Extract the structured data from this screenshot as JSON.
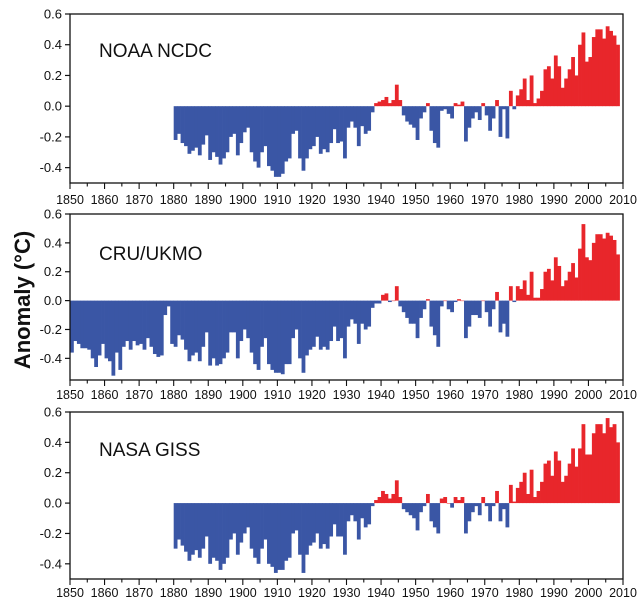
{
  "ylabel": "Anomaly (°C)",
  "colors": {
    "positive": "#e8262b",
    "negative": "#3a56a5",
    "frame": "#111111"
  },
  "chart_data": [
    {
      "type": "bar",
      "title": "NOAA NCDC",
      "xlim": [
        1850,
        2010
      ],
      "ylim": [
        -0.5,
        0.6
      ],
      "xticks": [
        1850,
        1860,
        1870,
        1880,
        1890,
        1900,
        1910,
        1920,
        1930,
        1940,
        1950,
        1960,
        1970,
        1980,
        1990,
        2000,
        2010
      ],
      "yticks": [
        {
          "value": 0.6,
          "label": "0.6"
        },
        {
          "value": 0.4,
          "label": "0.4"
        },
        {
          "value": 0.2,
          "label": "0.2"
        },
        {
          "value": 0.0,
          "label": "0.0"
        },
        {
          "value": -0.2,
          "label": "-0.2"
        },
        {
          "value": -0.4,
          "label": "-0.4"
        }
      ],
      "grid": false,
      "x": [
        1880,
        1881,
        1882,
        1883,
        1884,
        1885,
        1886,
        1887,
        1888,
        1889,
        1890,
        1891,
        1892,
        1893,
        1894,
        1895,
        1896,
        1897,
        1898,
        1899,
        1900,
        1901,
        1902,
        1903,
        1904,
        1905,
        1906,
        1907,
        1908,
        1909,
        1910,
        1911,
        1912,
        1913,
        1914,
        1915,
        1916,
        1917,
        1918,
        1919,
        1920,
        1921,
        1922,
        1923,
        1924,
        1925,
        1926,
        1927,
        1928,
        1929,
        1930,
        1931,
        1932,
        1933,
        1934,
        1935,
        1936,
        1937,
        1938,
        1939,
        1940,
        1941,
        1942,
        1943,
        1944,
        1945,
        1946,
        1947,
        1948,
        1949,
        1950,
        1951,
        1952,
        1953,
        1954,
        1955,
        1956,
        1957,
        1958,
        1959,
        1960,
        1961,
        1962,
        1963,
        1964,
        1965,
        1966,
        1967,
        1968,
        1969,
        1970,
        1971,
        1972,
        1973,
        1974,
        1975,
        1976,
        1977,
        1978,
        1979,
        1980,
        1981,
        1982,
        1983,
        1984,
        1985,
        1986,
        1987,
        1988,
        1989,
        1990,
        1991,
        1992,
        1993,
        1994,
        1995,
        1996,
        1997,
        1998,
        1999,
        2000,
        2001,
        2002,
        2003,
        2004,
        2005,
        2006,
        2007,
        2008
      ],
      "values": [
        -0.22,
        -0.18,
        -0.24,
        -0.26,
        -0.31,
        -0.29,
        -0.27,
        -0.32,
        -0.25,
        -0.19,
        -0.35,
        -0.3,
        -0.33,
        -0.38,
        -0.34,
        -0.3,
        -0.2,
        -0.18,
        -0.32,
        -0.24,
        -0.17,
        -0.14,
        -0.3,
        -0.36,
        -0.4,
        -0.3,
        -0.26,
        -0.39,
        -0.42,
        -0.46,
        -0.46,
        -0.44,
        -0.36,
        -0.34,
        -0.18,
        -0.16,
        -0.34,
        -0.42,
        -0.34,
        -0.28,
        -0.26,
        -0.2,
        -0.31,
        -0.28,
        -0.3,
        -0.24,
        -0.15,
        -0.24,
        -0.23,
        -0.34,
        -0.14,
        -0.1,
        -0.14,
        -0.26,
        -0.13,
        -0.18,
        -0.16,
        -0.04,
        0.02,
        0.03,
        0.04,
        0.06,
        0.02,
        0.04,
        0.14,
        0.04,
        -0.06,
        -0.1,
        -0.12,
        -0.14,
        -0.22,
        -0.08,
        -0.04,
        0.02,
        -0.16,
        -0.24,
        -0.27,
        -0.03,
        -0.02,
        -0.05,
        -0.08,
        0.02,
        0.01,
        0.03,
        -0.23,
        -0.14,
        -0.08,
        -0.04,
        -0.09,
        0.02,
        -0.06,
        -0.16,
        -0.08,
        0.04,
        -0.2,
        -0.02,
        -0.21,
        0.1,
        -0.02,
        0.07,
        0.11,
        0.18,
        0.04,
        0.2,
        0.02,
        0.05,
        0.1,
        0.24,
        0.26,
        0.18,
        0.33,
        0.26,
        0.12,
        0.18,
        0.24,
        0.32,
        0.2,
        0.4,
        0.48,
        0.29,
        0.32,
        0.45,
        0.5,
        0.5,
        0.44,
        0.52,
        0.49,
        0.46,
        0.4
      ]
    },
    {
      "type": "bar",
      "title": "CRU/UKMO",
      "xlim": [
        1850,
        2010
      ],
      "ylim": [
        -0.55,
        0.6
      ],
      "xticks": [
        1850,
        1860,
        1870,
        1880,
        1890,
        1900,
        1910,
        1920,
        1930,
        1940,
        1950,
        1960,
        1970,
        1980,
        1990,
        2000,
        2010
      ],
      "yticks": [
        {
          "value": 0.6,
          "label": "0.6"
        },
        {
          "value": 0.4,
          "label": "0.4"
        },
        {
          "value": 0.2,
          "label": "0.2"
        },
        {
          "value": 0.0,
          "label": "0.0"
        },
        {
          "value": -0.2,
          "label": "-0.2"
        },
        {
          "value": -0.4,
          "label": "-0.4"
        }
      ],
      "grid": false,
      "x": [
        1850,
        1851,
        1852,
        1853,
        1854,
        1855,
        1856,
        1857,
        1858,
        1859,
        1860,
        1861,
        1862,
        1863,
        1864,
        1865,
        1866,
        1867,
        1868,
        1869,
        1870,
        1871,
        1872,
        1873,
        1874,
        1875,
        1876,
        1877,
        1878,
        1879,
        1880,
        1881,
        1882,
        1883,
        1884,
        1885,
        1886,
        1887,
        1888,
        1889,
        1890,
        1891,
        1892,
        1893,
        1894,
        1895,
        1896,
        1897,
        1898,
        1899,
        1900,
        1901,
        1902,
        1903,
        1904,
        1905,
        1906,
        1907,
        1908,
        1909,
        1910,
        1911,
        1912,
        1913,
        1914,
        1915,
        1916,
        1917,
        1918,
        1919,
        1920,
        1921,
        1922,
        1923,
        1924,
        1925,
        1926,
        1927,
        1928,
        1929,
        1930,
        1931,
        1932,
        1933,
        1934,
        1935,
        1936,
        1937,
        1938,
        1939,
        1940,
        1941,
        1942,
        1943,
        1944,
        1945,
        1946,
        1947,
        1948,
        1949,
        1950,
        1951,
        1952,
        1953,
        1954,
        1955,
        1956,
        1957,
        1958,
        1959,
        1960,
        1961,
        1962,
        1963,
        1964,
        1965,
        1966,
        1967,
        1968,
        1969,
        1970,
        1971,
        1972,
        1973,
        1974,
        1975,
        1976,
        1977,
        1978,
        1979,
        1980,
        1981,
        1982,
        1983,
        1984,
        1985,
        1986,
        1987,
        1988,
        1989,
        1990,
        1991,
        1992,
        1993,
        1994,
        1995,
        1996,
        1997,
        1998,
        1999,
        2000,
        2001,
        2002,
        2003,
        2004,
        2005,
        2006,
        2007,
        2008
      ],
      "values": [
        -0.36,
        -0.28,
        -0.3,
        -0.33,
        -0.33,
        -0.34,
        -0.4,
        -0.46,
        -0.38,
        -0.3,
        -0.4,
        -0.42,
        -0.52,
        -0.36,
        -0.48,
        -0.32,
        -0.28,
        -0.34,
        -0.28,
        -0.31,
        -0.3,
        -0.34,
        -0.26,
        -0.32,
        -0.37,
        -0.39,
        -0.38,
        -0.1,
        -0.04,
        -0.3,
        -0.32,
        -0.24,
        -0.27,
        -0.34,
        -0.42,
        -0.38,
        -0.36,
        -0.42,
        -0.32,
        -0.22,
        -0.45,
        -0.4,
        -0.45,
        -0.44,
        -0.4,
        -0.36,
        -0.22,
        -0.22,
        -0.4,
        -0.28,
        -0.2,
        -0.26,
        -0.36,
        -0.44,
        -0.48,
        -0.32,
        -0.26,
        -0.44,
        -0.48,
        -0.5,
        -0.5,
        -0.51,
        -0.44,
        -0.44,
        -0.26,
        -0.2,
        -0.4,
        -0.5,
        -0.38,
        -0.34,
        -0.32,
        -0.25,
        -0.34,
        -0.32,
        -0.34,
        -0.28,
        -0.18,
        -0.28,
        -0.26,
        -0.4,
        -0.18,
        -0.13,
        -0.16,
        -0.3,
        -0.16,
        -0.2,
        -0.18,
        -0.05,
        -0.02,
        -0.02,
        0.04,
        0.05,
        -0.01,
        0.0,
        0.1,
        -0.04,
        -0.08,
        -0.12,
        -0.16,
        -0.16,
        -0.26,
        -0.12,
        -0.06,
        0.01,
        -0.18,
        -0.24,
        -0.32,
        -0.04,
        0.0,
        -0.06,
        -0.08,
        -0.01,
        0.01,
        0.0,
        -0.26,
        -0.18,
        -0.1,
        -0.1,
        -0.12,
        0.0,
        -0.08,
        -0.18,
        -0.06,
        0.06,
        -0.22,
        -0.16,
        -0.25,
        0.1,
        -0.01,
        0.1,
        0.08,
        0.14,
        0.04,
        0.2,
        0.02,
        0.02,
        0.08,
        0.2,
        0.22,
        0.14,
        0.3,
        0.24,
        0.1,
        0.14,
        0.2,
        0.26,
        0.16,
        0.36,
        0.53,
        0.3,
        0.28,
        0.4,
        0.46,
        0.46,
        0.43,
        0.47,
        0.45,
        0.42,
        0.32
      ]
    },
    {
      "type": "bar",
      "title": "NASA GISS",
      "xlim": [
        1850,
        2010
      ],
      "ylim": [
        -0.5,
        0.6
      ],
      "xticks": [
        1850,
        1860,
        1870,
        1880,
        1890,
        1900,
        1910,
        1920,
        1930,
        1940,
        1950,
        1960,
        1970,
        1980,
        1990,
        2000,
        2010
      ],
      "yticks": [
        {
          "value": 0.6,
          "label": "0.6"
        },
        {
          "value": 0.4,
          "label": "0.4"
        },
        {
          "value": 0.2,
          "label": "0.2"
        },
        {
          "value": 0.0,
          "label": "0.0"
        },
        {
          "value": -0.2,
          "label": "-0.2"
        },
        {
          "value": -0.4,
          "label": "-0.4"
        }
      ],
      "grid": false,
      "x": [
        1880,
        1881,
        1882,
        1883,
        1884,
        1885,
        1886,
        1887,
        1888,
        1889,
        1890,
        1891,
        1892,
        1893,
        1894,
        1895,
        1896,
        1897,
        1898,
        1899,
        1900,
        1901,
        1902,
        1903,
        1904,
        1905,
        1906,
        1907,
        1908,
        1909,
        1910,
        1911,
        1912,
        1913,
        1914,
        1915,
        1916,
        1917,
        1918,
        1919,
        1920,
        1921,
        1922,
        1923,
        1924,
        1925,
        1926,
        1927,
        1928,
        1929,
        1930,
        1931,
        1932,
        1933,
        1934,
        1935,
        1936,
        1937,
        1938,
        1939,
        1940,
        1941,
        1942,
        1943,
        1944,
        1945,
        1946,
        1947,
        1948,
        1949,
        1950,
        1951,
        1952,
        1953,
        1954,
        1955,
        1956,
        1957,
        1958,
        1959,
        1960,
        1961,
        1962,
        1963,
        1964,
        1965,
        1966,
        1967,
        1968,
        1969,
        1970,
        1971,
        1972,
        1973,
        1974,
        1975,
        1976,
        1977,
        1978,
        1979,
        1980,
        1981,
        1982,
        1983,
        1984,
        1985,
        1986,
        1987,
        1988,
        1989,
        1990,
        1991,
        1992,
        1993,
        1994,
        1995,
        1996,
        1997,
        1998,
        1999,
        2000,
        2001,
        2002,
        2003,
        2004,
        2005,
        2006,
        2007,
        2008
      ],
      "values": [
        -0.3,
        -0.24,
        -0.28,
        -0.32,
        -0.38,
        -0.34,
        -0.31,
        -0.36,
        -0.3,
        -0.22,
        -0.4,
        -0.36,
        -0.38,
        -0.44,
        -0.4,
        -0.36,
        -0.24,
        -0.2,
        -0.34,
        -0.26,
        -0.2,
        -0.16,
        -0.3,
        -0.36,
        -0.4,
        -0.3,
        -0.24,
        -0.4,
        -0.42,
        -0.46,
        -0.44,
        -0.44,
        -0.38,
        -0.36,
        -0.2,
        -0.18,
        -0.34,
        -0.46,
        -0.34,
        -0.28,
        -0.26,
        -0.2,
        -0.3,
        -0.27,
        -0.3,
        -0.22,
        -0.14,
        -0.22,
        -0.22,
        -0.34,
        -0.12,
        -0.08,
        -0.12,
        -0.24,
        -0.1,
        -0.16,
        -0.14,
        -0.02,
        0.02,
        0.04,
        0.08,
        0.06,
        0.03,
        0.06,
        0.15,
        0.04,
        -0.04,
        -0.06,
        -0.08,
        -0.1,
        -0.18,
        -0.06,
        -0.02,
        0.06,
        -0.12,
        -0.16,
        -0.2,
        0.03,
        0.04,
        0.0,
        -0.03,
        0.04,
        0.02,
        0.04,
        -0.2,
        -0.12,
        -0.06,
        -0.02,
        -0.08,
        0.04,
        -0.02,
        -0.12,
        -0.02,
        0.08,
        -0.12,
        -0.04,
        -0.16,
        0.12,
        0.01,
        0.1,
        0.14,
        0.2,
        0.06,
        0.22,
        0.04,
        0.08,
        0.14,
        0.26,
        0.28,
        0.18,
        0.34,
        0.28,
        0.14,
        0.18,
        0.26,
        0.36,
        0.24,
        0.36,
        0.52,
        0.32,
        0.32,
        0.46,
        0.52,
        0.52,
        0.46,
        0.56,
        0.5,
        0.52,
        0.4
      ]
    }
  ]
}
